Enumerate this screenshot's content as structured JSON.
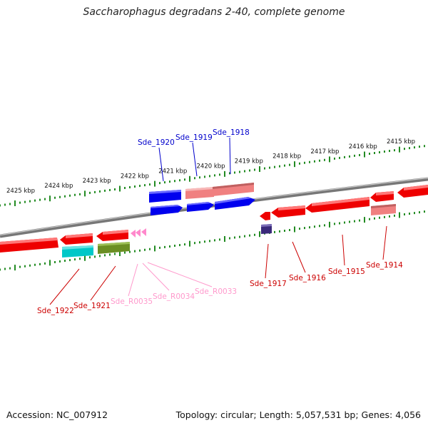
{
  "title": "Saccharophagus degradans 2-40, complete genome",
  "footer": {
    "accession": "Accession: NC_007912",
    "summary": "Topology: circular; Length: 5,057,531 bp; Genes: 4,056"
  },
  "colors": {
    "red": "#ff0000",
    "pink": "#f08080",
    "blue": "#0000ff",
    "cyan": "#00c8c8",
    "olive": "#6b8e23",
    "rna_pink": "#ff88cc",
    "navy": "#3a2a7a",
    "tick": "#228b22"
  },
  "ruler_labels": [
    "2425 kbp",
    "2424 kbp",
    "2423 kbp",
    "2422 kbp",
    "2421 kbp",
    "2420 kbp",
    "2419 kbp",
    "2418 kbp",
    "2417 kbp",
    "2416 kbp",
    "2415 kbp"
  ],
  "gene_labels": [
    {
      "name": "Sde_1920",
      "color": "#0000cc"
    },
    {
      "name": "Sde_1919",
      "color": "#0000cc"
    },
    {
      "name": "Sde_1918",
      "color": "#0000cc"
    },
    {
      "name": "Sde_1922",
      "color": "#cc0000"
    },
    {
      "name": "Sde_1921",
      "color": "#cc0000"
    },
    {
      "name": "Sde_R0035",
      "color": "#ff99cc"
    },
    {
      "name": "Sde_R0034",
      "color": "#ff99cc"
    },
    {
      "name": "Sde_R0033",
      "color": "#ff99cc"
    },
    {
      "name": "Sde_1917",
      "color": "#cc0000"
    },
    {
      "name": "Sde_1916",
      "color": "#cc0000"
    },
    {
      "name": "Sde_1915",
      "color": "#cc0000"
    },
    {
      "name": "Sde_1914",
      "color": "#cc0000"
    }
  ]
}
